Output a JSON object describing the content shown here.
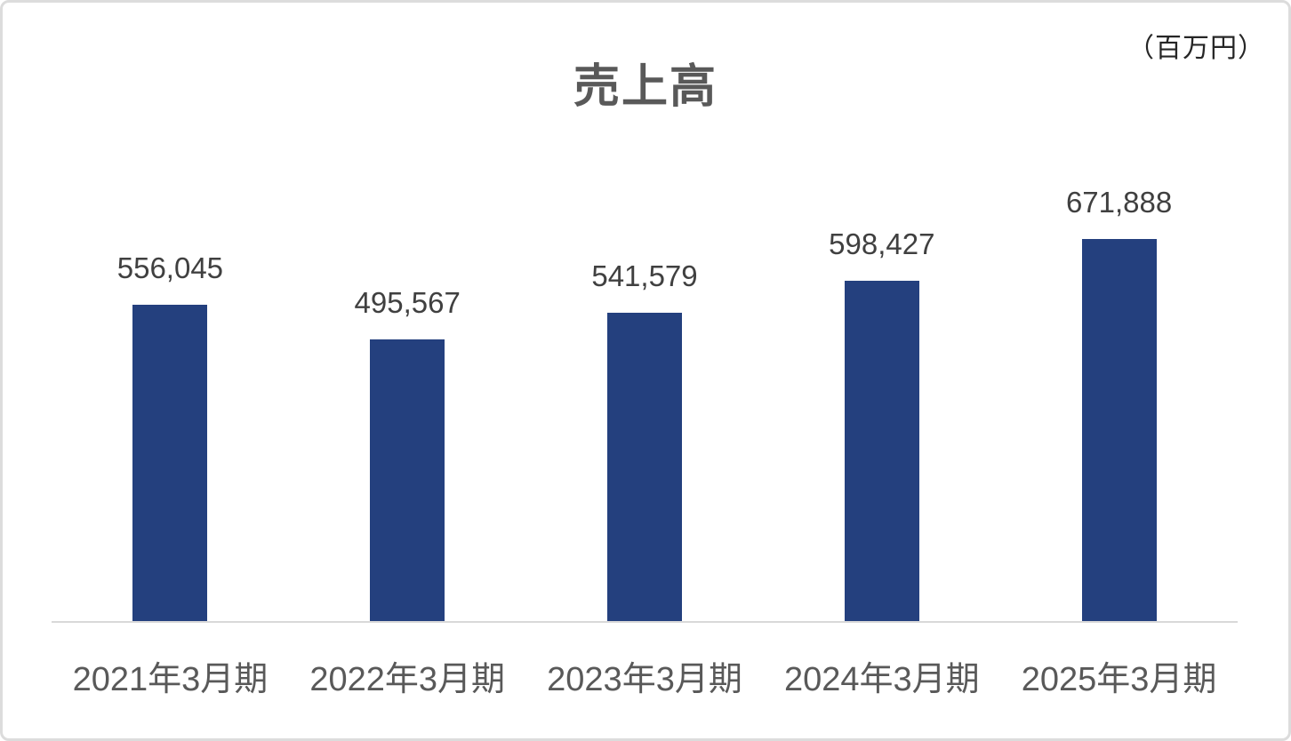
{
  "chart": {
    "title": "売上高",
    "unit_label": "（百万円）"
  },
  "chart_data": {
    "type": "bar",
    "title": "売上高",
    "unit": "百万円",
    "categories": [
      "2021年3月期",
      "2022年3月期",
      "2023年3月期",
      "2024年3月期",
      "2025年3月期"
    ],
    "values": [
      556045,
      495567,
      541579,
      598427,
      671888
    ],
    "values_formatted": [
      "556,045",
      "495,567",
      "541,579",
      "598,427",
      "671,888"
    ],
    "xlabel": "",
    "ylabel": "",
    "ylim": [
      0,
      671888
    ],
    "grid": false,
    "legend": false,
    "y_axis_visible": false,
    "data_labels": true,
    "bar_color": "#24407e",
    "axis_line_color": "#d9d9d9",
    "title_color": "#595959",
    "label_color": "#404040",
    "category_label_color": "#595959"
  }
}
